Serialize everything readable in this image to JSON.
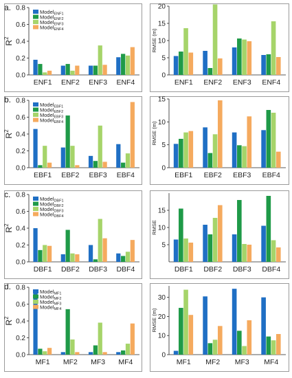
{
  "colors": [
    "#1f6fc4",
    "#1f9a48",
    "#a6d46a",
    "#f5aa5e"
  ],
  "chart_data": [
    {
      "panel": "a.",
      "type": "bar",
      "ylabel": "R",
      "ylabel_sup": "2",
      "ylim": [
        0,
        0.8
      ],
      "yticks": [
        0.0,
        0.2,
        0.4,
        0.6,
        0.8
      ],
      "categories": [
        "ENF1",
        "ENF2",
        "ENF3",
        "ENF4"
      ],
      "series": [
        {
          "base": "Model",
          "sub": "ENF1",
          "values": [
            0.18,
            0.11,
            0.11,
            0.21
          ]
        },
        {
          "base": "Model",
          "sub": "ENF2",
          "values": [
            0.13,
            0.13,
            0.11,
            0.25
          ]
        },
        {
          "base": "Model",
          "sub": "ENF3",
          "values": [
            0.03,
            0.05,
            0.35,
            0.23
          ]
        },
        {
          "base": "Model",
          "sub": "ENF4",
          "values": [
            0.05,
            0.11,
            0.12,
            0.33
          ]
        }
      ]
    },
    {
      "panel": "",
      "type": "bar",
      "ylabel": "RMSE (m)",
      "ylim": [
        0,
        20
      ],
      "yticks": [
        0,
        5,
        10,
        15,
        20
      ],
      "categories": [
        "ENF1",
        "ENF2",
        "ENF3",
        "ENF4"
      ],
      "series": [
        {
          "values": [
            5.5,
            7.0,
            8.0,
            5.8
          ]
        },
        {
          "values": [
            6.8,
            2.0,
            10.6,
            6.0
          ]
        },
        {
          "values": [
            13.6,
            20.5,
            10.3,
            15.6
          ]
        },
        {
          "values": [
            6.5,
            4.8,
            9.8,
            5.2
          ]
        }
      ]
    },
    {
      "panel": "b.",
      "type": "bar",
      "ylabel": "R",
      "ylabel_sup": "2",
      "ylim": [
        0,
        0.8
      ],
      "yticks": [
        0.0,
        0.2,
        0.4,
        0.6,
        0.8
      ],
      "categories": [
        "EBF1",
        "EBF2",
        "EBF3",
        "EBF4"
      ],
      "series": [
        {
          "base": "Model",
          "sub": "EBF1",
          "values": [
            0.46,
            0.24,
            0.14,
            0.28
          ]
        },
        {
          "base": "Model",
          "sub": "EBF2",
          "values": [
            0.03,
            0.62,
            0.08,
            0.06
          ]
        },
        {
          "base": "Model",
          "sub": "EBF3",
          "values": [
            0.26,
            0.26,
            0.5,
            0.17
          ]
        },
        {
          "base": "Model",
          "sub": "EBF4",
          "values": [
            0.06,
            0.03,
            0.07,
            0.78
          ]
        }
      ]
    },
    {
      "panel": "",
      "type": "bar",
      "ylabel": "RMSE (m)",
      "ylim": [
        0,
        15
      ],
      "yticks": [
        0,
        5,
        10,
        15
      ],
      "categories": [
        "EBF1",
        "EBF2",
        "EBF3",
        "EBF4"
      ],
      "series": [
        {
          "values": [
            5.2,
            8.8,
            7.7,
            8.2
          ]
        },
        {
          "values": [
            6.3,
            3.2,
            4.9,
            12.6
          ]
        },
        {
          "values": [
            7.7,
            7.3,
            4.7,
            12.0
          ]
        },
        {
          "values": [
            8.0,
            14.7,
            11.2,
            3.5
          ]
        }
      ]
    },
    {
      "panel": "c.",
      "type": "bar",
      "ylabel": "R",
      "ylabel_sup": "2",
      "ylim": [
        0,
        0.8
      ],
      "yticks": [
        0.0,
        0.2,
        0.4,
        0.6,
        0.8
      ],
      "categories": [
        "DBF1",
        "DBF2",
        "DBF3",
        "DBF4"
      ],
      "series": [
        {
          "base": "Model",
          "sub": "DBF1",
          "values": [
            0.4,
            0.09,
            0.2,
            0.1
          ]
        },
        {
          "base": "Model",
          "sub": "DBF2",
          "values": [
            0.14,
            0.38,
            0.03,
            0.07
          ]
        },
        {
          "base": "Model",
          "sub": "DBF3",
          "values": [
            0.2,
            0.1,
            0.51,
            0.12
          ]
        },
        {
          "base": "Model",
          "sub": "DBF4",
          "values": [
            0.19,
            0.09,
            0.28,
            0.26
          ]
        }
      ]
    },
    {
      "panel": "",
      "type": "bar",
      "ylabel": "RMSE",
      "ylim": [
        0,
        20
      ],
      "yticks": [
        5,
        10,
        15
      ],
      "categories": [
        "DBF1",
        "DBF2",
        "DBF3",
        "DBF4"
      ],
      "series": [
        {
          "values": [
            6.5,
            10.8,
            8.0,
            10.5
          ]
        },
        {
          "values": [
            15.5,
            8.0,
            18.0,
            19.2
          ]
        },
        {
          "values": [
            6.8,
            12.8,
            5.2,
            6.3
          ]
        },
        {
          "values": [
            5.6,
            16.5,
            5.0,
            4.2
          ]
        }
      ]
    },
    {
      "panel": "d.",
      "type": "bar",
      "ylabel": "R",
      "ylabel_sup": "2",
      "ylim": [
        0,
        0.8
      ],
      "yticks": [
        0.0,
        0.2,
        0.4,
        0.6,
        0.8
      ],
      "categories": [
        "MF1",
        "MF2",
        "MF3",
        "MF4"
      ],
      "series": [
        {
          "base": "Model",
          "sub": "MF1",
          "values": [
            0.75,
            0.03,
            0.03,
            0.03
          ]
        },
        {
          "base": "Model",
          "sub": "MF2",
          "values": [
            0.07,
            0.54,
            0.11,
            0.05
          ]
        },
        {
          "base": "Model",
          "sub": "MF3",
          "values": [
            0.04,
            0.18,
            0.38,
            0.13
          ]
        },
        {
          "base": "Model",
          "sub": "MF4",
          "values": [
            0.08,
            0.03,
            0.03,
            0.37
          ]
        }
      ]
    },
    {
      "panel": "",
      "type": "bar",
      "ylabel": "RMSE (m)",
      "ylim": [
        0,
        36
      ],
      "yticks": [
        0,
        10,
        20,
        30
      ],
      "categories": [
        "MF1",
        "MF2",
        "MF3",
        "MF4"
      ],
      "series": [
        {
          "values": [
            2.0,
            30.5,
            34.5,
            30.0
          ]
        },
        {
          "values": [
            24.5,
            6.0,
            12.5,
            9.5
          ]
        },
        {
          "values": [
            34.0,
            7.8,
            4.5,
            7.5
          ]
        },
        {
          "values": [
            20.8,
            15.0,
            18.0,
            10.8
          ]
        }
      ]
    }
  ]
}
